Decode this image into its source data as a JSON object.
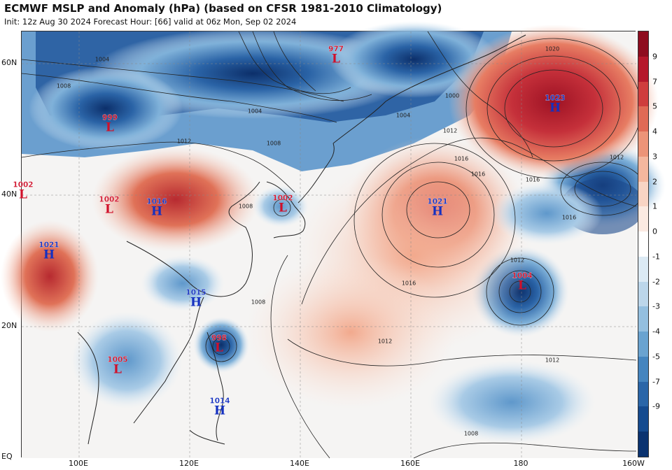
{
  "title": "ECMWF MSLP and Anomaly (hPa) (based on CFSR 1981-2010 Climatology)",
  "subtitle": "Init: 12z Aug 30 2024   Forecast Hour: [66]   valid at 06z Mon, Sep 02 2024",
  "lat_labels": [
    "60N",
    "40N",
    "20N",
    "EQ"
  ],
  "lon_labels": [
    "100E",
    "120E",
    "140E",
    "160E",
    "180",
    "160W"
  ],
  "colorbar": {
    "labels": [
      "9",
      "7",
      "5",
      "4",
      "3",
      "2",
      "1",
      "0",
      "-1",
      "-2",
      "-3",
      "-4",
      "-5",
      "-7",
      "-9"
    ],
    "colors": [
      "#8e0d1f",
      "#b5182b",
      "#cf3d3d",
      "#e06a55",
      "#ec9478",
      "#f4b79e",
      "#f8d4c4",
      "#fbeae2",
      "#ffffff",
      "#dceaf4",
      "#bcd6ea",
      "#94bfdf",
      "#6aa3d0",
      "#4585bf",
      "#2a66a8",
      "#154b8f",
      "#0b3370"
    ]
  },
  "systems": [
    {
      "type": "L",
      "pressure": "977"
    },
    {
      "type": "L",
      "pressure": "999"
    },
    {
      "type": "H",
      "pressure": "1023"
    },
    {
      "type": "L",
      "pressure": "1002"
    },
    {
      "type": "L",
      "pressure": "1002"
    },
    {
      "type": "H",
      "pressure": "1016"
    },
    {
      "type": "L",
      "pressure": "1002"
    },
    {
      "type": "H",
      "pressure": "1021"
    },
    {
      "type": "H",
      "pressure": "1021"
    },
    {
      "type": "L",
      "pressure": "1004"
    },
    {
      "type": "H",
      "pressure": "1015"
    },
    {
      "type": "L",
      "pressure": "998"
    },
    {
      "type": "L",
      "pressure": "1005"
    },
    {
      "type": "H",
      "pressure": "1014"
    }
  ],
  "isobar_labels": [
    "1004",
    "1008",
    "1004",
    "1000",
    "1004",
    "1008",
    "1012",
    "1016",
    "1020",
    "1012",
    "1016",
    "1016",
    "1012",
    "1008",
    "1016",
    "1012",
    "1012",
    "1012",
    "1008",
    "1016",
    "1008"
  ]
}
